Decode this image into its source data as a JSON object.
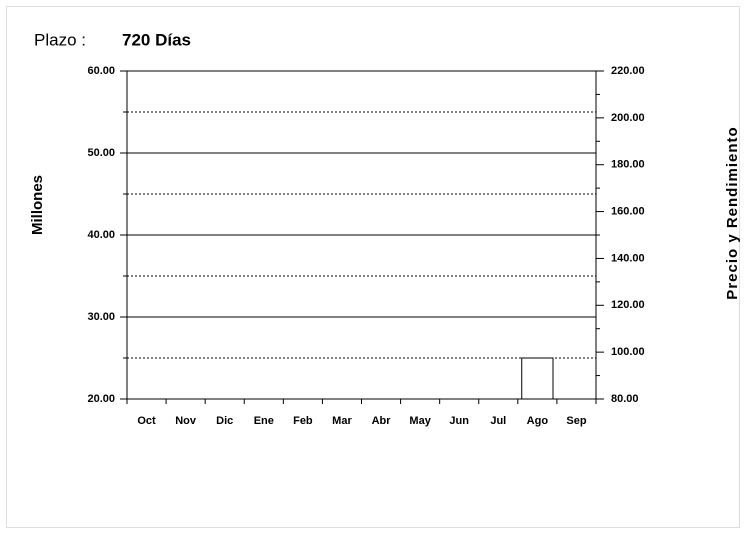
{
  "chart_data": {
    "type": "bar",
    "label": "Plazo :",
    "title": "720 Días",
    "y_label": "Millones",
    "y2_label": "Precio y Rendimiento",
    "categories": [
      "Oct",
      "Nov",
      "Dic",
      "Ene",
      "Feb",
      "Mar",
      "Abr",
      "May",
      "Jun",
      "Jul",
      "Ago",
      "Sep"
    ],
    "values": [
      null,
      null,
      null,
      null,
      null,
      null,
      null,
      null,
      null,
      null,
      25,
      null
    ],
    "color": "#ffffff",
    "edge_color": "#000000",
    "ylim": [
      20,
      60
    ],
    "yticks": [
      {
        "value": 20,
        "label": "20.00"
      },
      {
        "value": 30,
        "label": "30.00"
      },
      {
        "value": 40,
        "label": "40.00"
      },
      {
        "value": 50,
        "label": "50.00"
      },
      {
        "value": 60,
        "label": "60.00"
      }
    ],
    "yminorticks": [
      25,
      35,
      45,
      55
    ],
    "y2lim": [
      80,
      220
    ],
    "y2ticks": [
      {
        "value": 80,
        "label": "80.00"
      },
      {
        "value": 100,
        "label": "100.00"
      },
      {
        "value": 120,
        "label": "120.00"
      },
      {
        "value": 140,
        "label": "140.00"
      },
      {
        "value": 160,
        "label": "160.00"
      },
      {
        "value": 180,
        "label": "180.00"
      },
      {
        "value": 200,
        "label": "200.00"
      },
      {
        "value": 220,
        "label": "220.00"
      }
    ],
    "y2minorticks": [
      90,
      110,
      130,
      150,
      170,
      190,
      210
    ],
    "grid": true
  }
}
